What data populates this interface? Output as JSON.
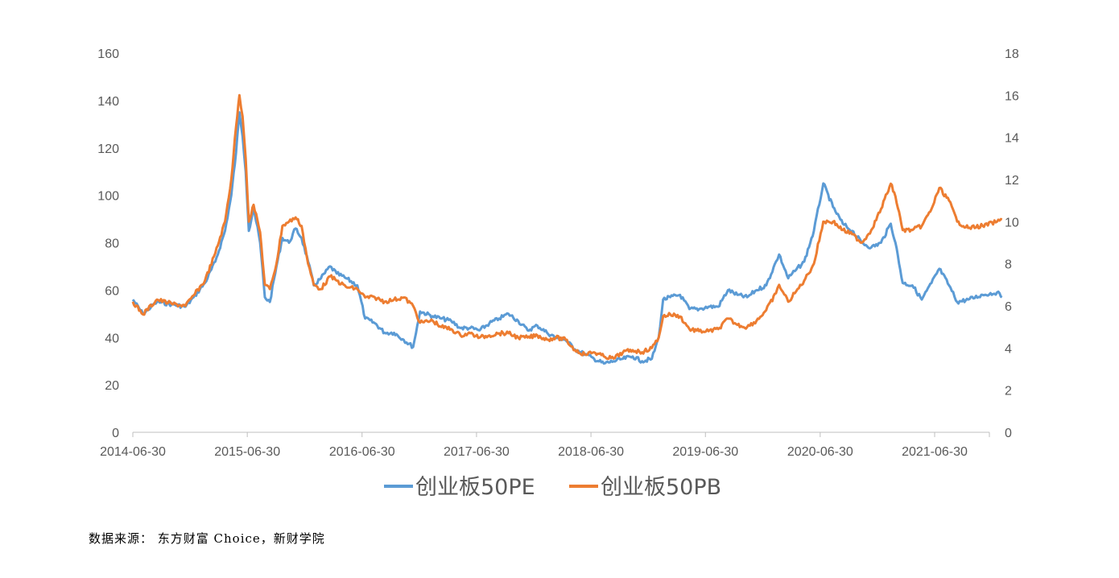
{
  "chart_data": {
    "type": "line",
    "title": "",
    "xlabel": "",
    "ylabel": "",
    "x_ticks": [
      "2014-06-30",
      "2015-06-30",
      "2016-06-30",
      "2017-06-30",
      "2018-06-30",
      "2019-06-30",
      "2020-06-30",
      "2021-06-30"
    ],
    "x_range": [
      "2014-06-30",
      "2021-10-31"
    ],
    "y_left_ticks": [
      "0",
      "20",
      "40",
      "60",
      "80",
      "100",
      "120",
      "140",
      "160"
    ],
    "y_left_range": [
      0,
      160
    ],
    "y_right_ticks": [
      "0",
      "2",
      "4",
      "6",
      "8",
      "10",
      "12",
      "14",
      "16",
      "18"
    ],
    "y_right_range": [
      0,
      18
    ],
    "grid": false,
    "legend_position": "bottom",
    "series": [
      {
        "name": "创业板50PE",
        "axis": "left",
        "color": "#5B9BD5",
        "points": [
          [
            "2014-06-30",
            56
          ],
          [
            "2014-08-01",
            50
          ],
          [
            "2014-09-15",
            55
          ],
          [
            "2014-11-01",
            54
          ],
          [
            "2014-12-15",
            53
          ],
          [
            "2015-01-10",
            57
          ],
          [
            "2015-02-15",
            63
          ],
          [
            "2015-03-20",
            72
          ],
          [
            "2015-04-20",
            85
          ],
          [
            "2015-05-10",
            100
          ],
          [
            "2015-05-25",
            118
          ],
          [
            "2015-06-05",
            135
          ],
          [
            "2015-06-15",
            125
          ],
          [
            "2015-06-25",
            110
          ],
          [
            "2015-07-05",
            85
          ],
          [
            "2015-07-20",
            95
          ],
          [
            "2015-08-10",
            80
          ],
          [
            "2015-08-25",
            57
          ],
          [
            "2015-09-10",
            55
          ],
          [
            "2015-10-01",
            70
          ],
          [
            "2015-10-20",
            82
          ],
          [
            "2015-11-10",
            80
          ],
          [
            "2015-12-01",
            86
          ],
          [
            "2015-12-20",
            82
          ],
          [
            "2016-01-10",
            72
          ],
          [
            "2016-01-28",
            62
          ],
          [
            "2016-02-20",
            65
          ],
          [
            "2016-03-20",
            70
          ],
          [
            "2016-04-10",
            67
          ],
          [
            "2016-05-10",
            65
          ],
          [
            "2016-06-15",
            62
          ],
          [
            "2016-07-10",
            48
          ],
          [
            "2016-08-10",
            46
          ],
          [
            "2016-09-10",
            42
          ],
          [
            "2016-10-10",
            42
          ],
          [
            "2016-11-10",
            39
          ],
          [
            "2016-12-10",
            36
          ],
          [
            "2017-01-01",
            51
          ],
          [
            "2017-02-10",
            49
          ],
          [
            "2017-03-10",
            48
          ],
          [
            "2017-04-10",
            47
          ],
          [
            "2017-05-10",
            44
          ],
          [
            "2017-06-10",
            44
          ],
          [
            "2017-07-10",
            43
          ],
          [
            "2017-08-10",
            46
          ],
          [
            "2017-09-10",
            48
          ],
          [
            "2017-10-10",
            50
          ],
          [
            "2017-11-10",
            47
          ],
          [
            "2017-12-10",
            43
          ],
          [
            "2018-01-10",
            45
          ],
          [
            "2018-02-10",
            42
          ],
          [
            "2018-03-10",
            40
          ],
          [
            "2018-04-10",
            39
          ],
          [
            "2018-05-10",
            35
          ],
          [
            "2018-06-10",
            33
          ],
          [
            "2018-07-10",
            31
          ],
          [
            "2018-08-10",
            29
          ],
          [
            "2018-09-10",
            30
          ],
          [
            "2018-10-10",
            31
          ],
          [
            "2018-11-10",
            32
          ],
          [
            "2018-12-10",
            30
          ],
          [
            "2019-01-10",
            31
          ],
          [
            "2019-02-01",
            40
          ],
          [
            "2019-02-15",
            56
          ],
          [
            "2019-03-10",
            57
          ],
          [
            "2019-04-10",
            58
          ],
          [
            "2019-05-10",
            52
          ],
          [
            "2019-06-10",
            52
          ],
          [
            "2019-07-10",
            53
          ],
          [
            "2019-08-10",
            53
          ],
          [
            "2019-09-10",
            60
          ],
          [
            "2019-10-10",
            58
          ],
          [
            "2019-11-10",
            57
          ],
          [
            "2019-12-10",
            60
          ],
          [
            "2020-01-10",
            62
          ],
          [
            "2020-02-10",
            72
          ],
          [
            "2020-02-20",
            75
          ],
          [
            "2020-03-20",
            65
          ],
          [
            "2020-04-10",
            68
          ],
          [
            "2020-05-10",
            72
          ],
          [
            "2020-06-10",
            85
          ],
          [
            "2020-07-10",
            105
          ],
          [
            "2020-08-10",
            95
          ],
          [
            "2020-09-10",
            88
          ],
          [
            "2020-10-10",
            85
          ],
          [
            "2020-11-10",
            80
          ],
          [
            "2020-12-10",
            78
          ],
          [
            "2021-01-10",
            80
          ],
          [
            "2021-02-10",
            88
          ],
          [
            "2021-02-25",
            80
          ],
          [
            "2021-03-20",
            63
          ],
          [
            "2021-04-20",
            62
          ],
          [
            "2021-05-20",
            56
          ],
          [
            "2021-06-20",
            63
          ],
          [
            "2021-07-15",
            69
          ],
          [
            "2021-08-15",
            62
          ],
          [
            "2021-09-10",
            55
          ],
          [
            "2021-10-15",
            56
          ],
          [
            "2021-11-30",
            58
          ],
          [
            "2022-01-15",
            59
          ],
          [
            "2022-01-31",
            57
          ]
        ]
      },
      {
        "name": "创业板50PB",
        "axis": "right",
        "color": "#ED7D31",
        "points": [
          [
            "2014-06-30",
            6.2
          ],
          [
            "2014-08-01",
            5.6
          ],
          [
            "2014-09-15",
            6.3
          ],
          [
            "2014-11-01",
            6.1
          ],
          [
            "2014-12-15",
            6.0
          ],
          [
            "2015-01-10",
            6.5
          ],
          [
            "2015-02-15",
            7.2
          ],
          [
            "2015-03-20",
            8.5
          ],
          [
            "2015-04-20",
            10.0
          ],
          [
            "2015-05-10",
            12.0
          ],
          [
            "2015-05-25",
            14.5
          ],
          [
            "2015-06-05",
            16.0
          ],
          [
            "2015-06-15",
            15.0
          ],
          [
            "2015-06-25",
            13.0
          ],
          [
            "2015-07-05",
            10.0
          ],
          [
            "2015-07-20",
            10.8
          ],
          [
            "2015-08-10",
            9.5
          ],
          [
            "2015-08-25",
            7.0
          ],
          [
            "2015-09-10",
            6.8
          ],
          [
            "2015-10-01",
            8.0
          ],
          [
            "2015-10-20",
            9.8
          ],
          [
            "2015-11-10",
            10.0
          ],
          [
            "2015-12-01",
            10.2
          ],
          [
            "2015-12-20",
            9.8
          ],
          [
            "2016-01-10",
            8.0
          ],
          [
            "2016-01-28",
            7.0
          ],
          [
            "2016-02-20",
            6.8
          ],
          [
            "2016-03-20",
            7.4
          ],
          [
            "2016-04-10",
            7.2
          ],
          [
            "2016-05-10",
            6.9
          ],
          [
            "2016-06-15",
            6.8
          ],
          [
            "2016-07-10",
            6.4
          ],
          [
            "2016-08-10",
            6.4
          ],
          [
            "2016-09-10",
            6.2
          ],
          [
            "2016-10-10",
            6.3
          ],
          [
            "2016-11-10",
            6.4
          ],
          [
            "2016-12-10",
            6.0
          ],
          [
            "2017-01-01",
            5.2
          ],
          [
            "2017-02-10",
            5.3
          ],
          [
            "2017-03-10",
            5.0
          ],
          [
            "2017-04-10",
            4.9
          ],
          [
            "2017-05-10",
            4.6
          ],
          [
            "2017-06-10",
            4.7
          ],
          [
            "2017-07-10",
            4.5
          ],
          [
            "2017-08-10",
            4.6
          ],
          [
            "2017-09-10",
            4.7
          ],
          [
            "2017-10-10",
            4.7
          ],
          [
            "2017-11-10",
            4.5
          ],
          [
            "2017-12-10",
            4.5
          ],
          [
            "2018-01-10",
            4.6
          ],
          [
            "2018-02-10",
            4.4
          ],
          [
            "2018-03-10",
            4.5
          ],
          [
            "2018-04-10",
            4.4
          ],
          [
            "2018-05-10",
            3.9
          ],
          [
            "2018-06-10",
            3.7
          ],
          [
            "2018-07-10",
            3.8
          ],
          [
            "2018-08-10",
            3.6
          ],
          [
            "2018-09-10",
            3.5
          ],
          [
            "2018-10-10",
            3.8
          ],
          [
            "2018-11-10",
            3.9
          ],
          [
            "2018-12-10",
            3.8
          ],
          [
            "2019-01-10",
            4.0
          ],
          [
            "2019-02-01",
            4.5
          ],
          [
            "2019-02-15",
            5.5
          ],
          [
            "2019-03-10",
            5.6
          ],
          [
            "2019-04-10",
            5.5
          ],
          [
            "2019-05-10",
            4.9
          ],
          [
            "2019-06-10",
            4.8
          ],
          [
            "2019-07-10",
            4.8
          ],
          [
            "2019-08-10",
            4.9
          ],
          [
            "2019-09-10",
            5.4
          ],
          [
            "2019-10-10",
            5.1
          ],
          [
            "2019-11-10",
            5.0
          ],
          [
            "2019-12-10",
            5.3
          ],
          [
            "2020-01-10",
            5.8
          ],
          [
            "2020-02-10",
            6.6
          ],
          [
            "2020-02-20",
            7.0
          ],
          [
            "2020-03-20",
            6.2
          ],
          [
            "2020-04-10",
            6.6
          ],
          [
            "2020-05-10",
            7.2
          ],
          [
            "2020-06-10",
            8.0
          ],
          [
            "2020-07-10",
            10.0
          ],
          [
            "2020-08-10",
            10.0
          ],
          [
            "2020-09-10",
            9.6
          ],
          [
            "2020-10-10",
            9.4
          ],
          [
            "2020-11-10",
            9.0
          ],
          [
            "2020-12-10",
            9.6
          ],
          [
            "2021-01-10",
            10.6
          ],
          [
            "2021-02-10",
            11.8
          ],
          [
            "2021-02-25",
            11.2
          ],
          [
            "2021-03-20",
            9.6
          ],
          [
            "2021-04-20",
            9.6
          ],
          [
            "2021-05-20",
            9.8
          ],
          [
            "2021-06-20",
            10.6
          ],
          [
            "2021-07-15",
            11.6
          ],
          [
            "2021-08-15",
            11.0
          ],
          [
            "2021-09-10",
            10.0
          ],
          [
            "2021-10-15",
            9.7
          ],
          [
            "2021-11-30",
            9.8
          ],
          [
            "2022-01-15",
            10.0
          ],
          [
            "2022-01-31",
            10.1
          ]
        ]
      }
    ]
  },
  "footer": {
    "source": "数据来源： 东方财富 Choice，新财学院"
  }
}
